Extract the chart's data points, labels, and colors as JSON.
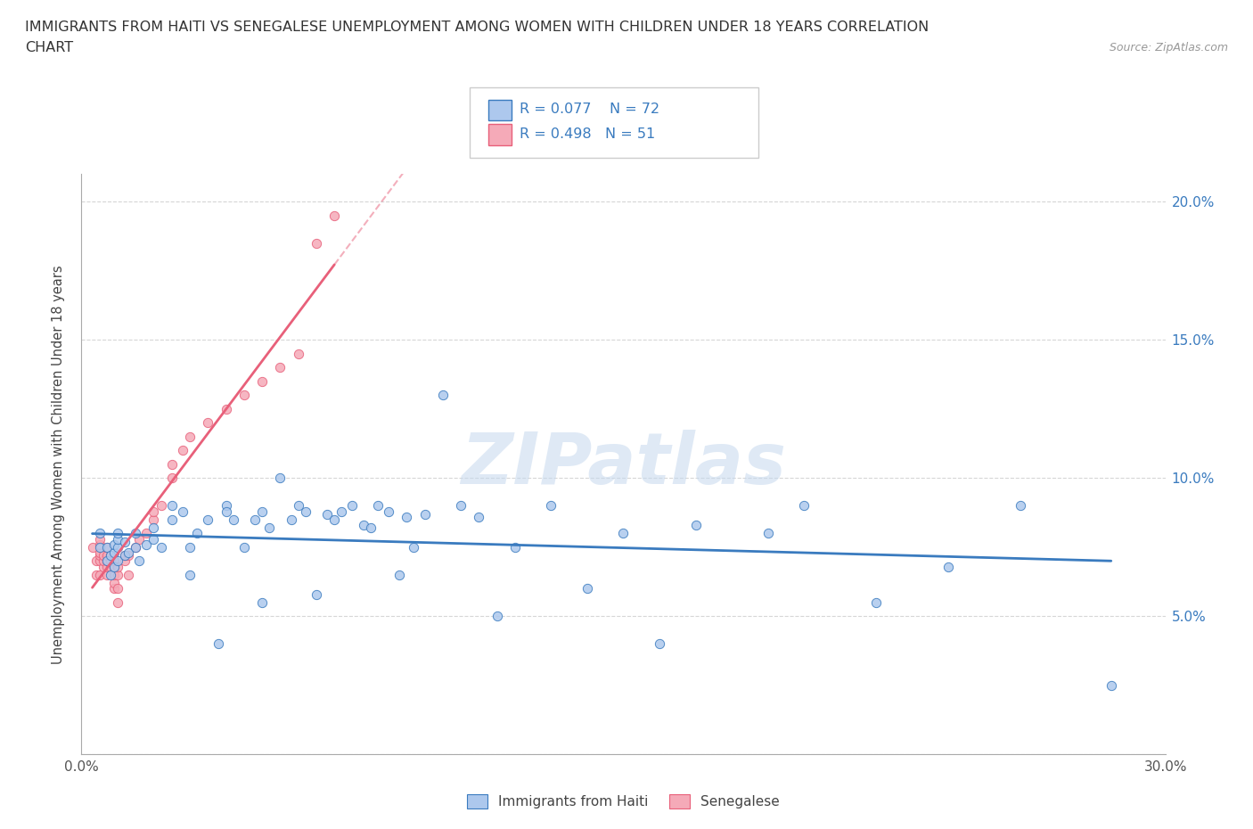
{
  "title_line1": "IMMIGRANTS FROM HAITI VS SENEGALESE UNEMPLOYMENT AMONG WOMEN WITH CHILDREN UNDER 18 YEARS CORRELATION",
  "title_line2": "CHART",
  "source_text": "Source: ZipAtlas.com",
  "ylabel_left": "Unemployment Among Women with Children Under 18 years",
  "xlim": [
    0.0,
    0.3
  ],
  "ylim": [
    0.0,
    0.21
  ],
  "xticks": [
    0.0,
    0.05,
    0.1,
    0.15,
    0.2,
    0.25,
    0.3
  ],
  "xtick_labels": [
    "0.0%",
    "",
    "",
    "",
    "",
    "",
    "30.0%"
  ],
  "yticks": [
    0.0,
    0.05,
    0.1,
    0.15,
    0.2
  ],
  "ytick_labels_right": [
    "",
    "5.0%",
    "10.0%",
    "15.0%",
    "20.0%"
  ],
  "legend_haiti": "Immigrants from Haiti",
  "legend_senegalese": "Senegalese",
  "R_haiti": "R = 0.077",
  "N_haiti": "N = 72",
  "R_senegal": "R = 0.498",
  "N_senegal": "N = 51",
  "haiti_color": "#adc8ed",
  "senegal_color": "#f5aab8",
  "haiti_line_color": "#3a7bbf",
  "senegal_line_color": "#e8607a",
  "watermark": "ZIPatlas",
  "background_color": "#ffffff",
  "haiti_scatter_x": [
    0.005,
    0.005,
    0.007,
    0.007,
    0.008,
    0.008,
    0.009,
    0.009,
    0.009,
    0.01,
    0.01,
    0.01,
    0.01,
    0.012,
    0.012,
    0.013,
    0.015,
    0.015,
    0.016,
    0.018,
    0.02,
    0.02,
    0.022,
    0.025,
    0.025,
    0.028,
    0.03,
    0.03,
    0.032,
    0.035,
    0.038,
    0.04,
    0.04,
    0.042,
    0.045,
    0.048,
    0.05,
    0.05,
    0.052,
    0.055,
    0.058,
    0.06,
    0.062,
    0.065,
    0.068,
    0.07,
    0.072,
    0.075,
    0.078,
    0.08,
    0.082,
    0.085,
    0.088,
    0.09,
    0.092,
    0.095,
    0.1,
    0.105,
    0.11,
    0.115,
    0.12,
    0.13,
    0.14,
    0.15,
    0.16,
    0.17,
    0.19,
    0.2,
    0.22,
    0.24,
    0.26,
    0.285
  ],
  "haiti_scatter_y": [
    0.075,
    0.08,
    0.07,
    0.075,
    0.065,
    0.072,
    0.068,
    0.073,
    0.076,
    0.07,
    0.075,
    0.078,
    0.08,
    0.072,
    0.077,
    0.073,
    0.075,
    0.08,
    0.07,
    0.076,
    0.078,
    0.082,
    0.075,
    0.09,
    0.085,
    0.088,
    0.075,
    0.065,
    0.08,
    0.085,
    0.04,
    0.09,
    0.088,
    0.085,
    0.075,
    0.085,
    0.055,
    0.088,
    0.082,
    0.1,
    0.085,
    0.09,
    0.088,
    0.058,
    0.087,
    0.085,
    0.088,
    0.09,
    0.083,
    0.082,
    0.09,
    0.088,
    0.065,
    0.086,
    0.075,
    0.087,
    0.13,
    0.09,
    0.086,
    0.05,
    0.075,
    0.09,
    0.06,
    0.08,
    0.04,
    0.083,
    0.08,
    0.09,
    0.055,
    0.068,
    0.09,
    0.025
  ],
  "senegal_scatter_x": [
    0.003,
    0.004,
    0.004,
    0.005,
    0.005,
    0.005,
    0.005,
    0.005,
    0.005,
    0.006,
    0.006,
    0.006,
    0.007,
    0.007,
    0.007,
    0.007,
    0.007,
    0.008,
    0.008,
    0.008,
    0.009,
    0.009,
    0.009,
    0.009,
    0.009,
    0.01,
    0.01,
    0.01,
    0.01,
    0.012,
    0.012,
    0.013,
    0.013,
    0.015,
    0.016,
    0.018,
    0.02,
    0.02,
    0.022,
    0.025,
    0.025,
    0.028,
    0.03,
    0.035,
    0.04,
    0.045,
    0.05,
    0.055,
    0.06,
    0.065,
    0.07
  ],
  "senegal_scatter_y": [
    0.075,
    0.07,
    0.065,
    0.065,
    0.07,
    0.072,
    0.073,
    0.076,
    0.078,
    0.068,
    0.07,
    0.072,
    0.065,
    0.068,
    0.07,
    0.072,
    0.075,
    0.068,
    0.07,
    0.072,
    0.06,
    0.062,
    0.065,
    0.068,
    0.07,
    0.055,
    0.06,
    0.065,
    0.068,
    0.07,
    0.072,
    0.065,
    0.072,
    0.075,
    0.078,
    0.08,
    0.085,
    0.088,
    0.09,
    0.1,
    0.105,
    0.11,
    0.115,
    0.12,
    0.125,
    0.13,
    0.135,
    0.14,
    0.145,
    0.185,
    0.195
  ],
  "senegal_line_x_start": 0.003,
  "senegal_line_x_solid_end": 0.07,
  "senegal_line_x_dash_end": 0.3,
  "haiti_line_x_start": 0.003,
  "haiti_line_x_end": 0.285
}
